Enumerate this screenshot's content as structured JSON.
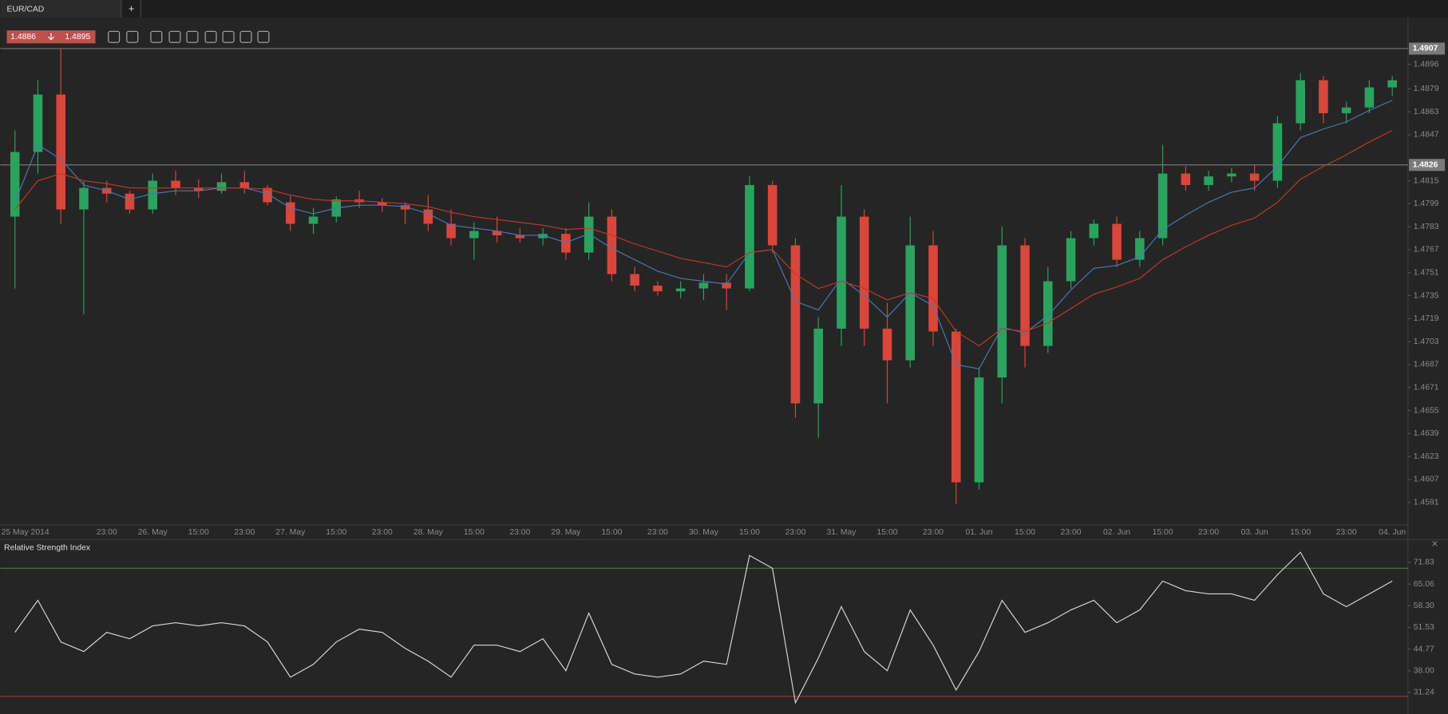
{
  "tab": {
    "title": "EUR/CAD",
    "add": "+"
  },
  "quote": {
    "bid": 1.4886,
    "ask": 1.4895
  },
  "chart_data": [
    {
      "type": "candlestick",
      "categories": [
        "25 May 2014",
        null,
        null,
        null,
        "23:00",
        null,
        "26. May",
        null,
        "15:00",
        null,
        "23:00",
        null,
        "27. May",
        null,
        "15:00",
        null,
        "23:00",
        null,
        "28. May",
        null,
        "15:00",
        null,
        "23:00",
        null,
        "29. May",
        null,
        "15:00",
        null,
        "23:00",
        null,
        "30. May",
        null,
        "15:00",
        null,
        "23:00",
        null,
        "31. May",
        null,
        "15:00",
        null,
        "23:00",
        null,
        "01. Jun",
        null,
        "15:00",
        null,
        "23:00",
        null,
        "02. Jun",
        null,
        "15:00",
        null,
        "23:00",
        null,
        "03. Jun",
        null,
        "15:00",
        null,
        "23:00",
        null,
        "04. Jun"
      ],
      "open": [
        1.479,
        1.4835,
        1.4875,
        1.4795,
        1.481,
        1.4806,
        1.4795,
        1.4815,
        1.481,
        1.4808,
        1.4814,
        1.481,
        1.48,
        1.4785,
        1.479,
        1.4802,
        1.48,
        1.4798,
        1.4795,
        1.4785,
        1.4775,
        1.478,
        1.4777,
        1.4775,
        1.4778,
        1.4765,
        1.479,
        1.475,
        1.4742,
        1.4738,
        1.474,
        1.4744,
        1.474,
        1.4812,
        1.477,
        1.466,
        1.4712,
        1.479,
        1.4712,
        1.469,
        1.477,
        1.471,
        1.4605,
        1.4678,
        1.477,
        1.47,
        1.4745,
        1.4775,
        1.4785,
        1.476,
        1.4775,
        1.482,
        1.4812,
        1.4818,
        1.482,
        1.4815,
        1.4855,
        1.4885,
        1.4862,
        1.4866,
        1.488
      ],
      "high": [
        1.485,
        1.4885,
        1.4907,
        1.4815,
        1.4815,
        1.4808,
        1.482,
        1.4822,
        1.4816,
        1.482,
        1.4822,
        1.4812,
        1.4805,
        1.4796,
        1.4804,
        1.4808,
        1.4803,
        1.48,
        1.4805,
        1.4795,
        1.4786,
        1.479,
        1.4782,
        1.4782,
        1.4782,
        1.48,
        1.4795,
        1.4755,
        1.4745,
        1.4745,
        1.475,
        1.475,
        1.4818,
        1.4815,
        1.4775,
        1.472,
        1.4812,
        1.4795,
        1.473,
        1.479,
        1.478,
        1.4712,
        1.4685,
        1.4783,
        1.4775,
        1.4755,
        1.478,
        1.4788,
        1.479,
        1.478,
        1.484,
        1.4825,
        1.4822,
        1.4824,
        1.4826,
        1.486,
        1.489,
        1.4888,
        1.487,
        1.4885,
        1.4888
      ],
      "low": [
        1.474,
        1.482,
        1.4785,
        1.4722,
        1.48,
        1.4792,
        1.4792,
        1.4805,
        1.4803,
        1.4806,
        1.4806,
        1.4798,
        1.478,
        1.4778,
        1.4786,
        1.4796,
        1.4793,
        1.4785,
        1.478,
        1.477,
        1.476,
        1.4772,
        1.4772,
        1.477,
        1.476,
        1.476,
        1.4745,
        1.4738,
        1.4735,
        1.4733,
        1.4732,
        1.4725,
        1.4738,
        1.4765,
        1.465,
        1.4636,
        1.47,
        1.47,
        1.466,
        1.4685,
        1.47,
        1.459,
        1.46,
        1.466,
        1.4685,
        1.4695,
        1.474,
        1.477,
        1.4755,
        1.4755,
        1.477,
        1.4808,
        1.4808,
        1.4814,
        1.4808,
        1.481,
        1.485,
        1.4855,
        1.4855,
        1.4862,
        1.4874
      ],
      "close": [
        1.4835,
        1.4875,
        1.4795,
        1.481,
        1.4806,
        1.4795,
        1.4815,
        1.481,
        1.4808,
        1.4814,
        1.481,
        1.48,
        1.4785,
        1.479,
        1.4802,
        1.48,
        1.4798,
        1.4795,
        1.4785,
        1.4775,
        1.478,
        1.4777,
        1.4775,
        1.4778,
        1.4765,
        1.479,
        1.475,
        1.4742,
        1.4738,
        1.474,
        1.4744,
        1.474,
        1.4812,
        1.477,
        1.466,
        1.4712,
        1.479,
        1.4712,
        1.469,
        1.477,
        1.471,
        1.4605,
        1.4678,
        1.477,
        1.47,
        1.4745,
        1.4775,
        1.4785,
        1.476,
        1.4775,
        1.482,
        1.4812,
        1.4818,
        1.482,
        1.4815,
        1.4855,
        1.4885,
        1.4862,
        1.4866,
        1.488,
        1.4885
      ],
      "up_color": "#2ca25f",
      "down_color": "#d9463b",
      "series": [
        {
          "color": "#4a78b5",
          "values": [
            1.48,
            1.484,
            1.483,
            1.4812,
            1.4808,
            1.4802,
            1.4806,
            1.4808,
            1.4808,
            1.481,
            1.481,
            1.4806,
            1.4796,
            1.4792,
            1.4796,
            1.4798,
            1.4798,
            1.4797,
            1.4792,
            1.4784,
            1.4782,
            1.478,
            1.4777,
            1.4777,
            1.4772,
            1.4778,
            1.4768,
            1.476,
            1.4752,
            1.4747,
            1.4745,
            1.4743,
            1.4765,
            1.4767,
            1.4731,
            1.4725,
            1.4747,
            1.4735,
            1.472,
            1.4737,
            1.4728,
            1.4687,
            1.4684,
            1.4713,
            1.4709,
            1.4721,
            1.4739,
            1.4754,
            1.4756,
            1.4762,
            1.4781,
            1.4791,
            1.48,
            1.4807,
            1.481,
            1.4825,
            1.4845,
            1.4851,
            1.4856,
            1.4864,
            1.4871
          ]
        },
        {
          "color": "#c0392b",
          "values": [
            1.4795,
            1.4815,
            1.482,
            1.4815,
            1.4813,
            1.481,
            1.481,
            1.481,
            1.481,
            1.481,
            1.481,
            1.4809,
            1.4805,
            1.4802,
            1.4801,
            1.4801,
            1.48,
            1.4799,
            1.4797,
            1.4793,
            1.479,
            1.4788,
            1.4786,
            1.4784,
            1.4781,
            1.4782,
            1.4777,
            1.4771,
            1.4766,
            1.4761,
            1.4758,
            1.4755,
            1.4765,
            1.4767,
            1.475,
            1.474,
            1.4745,
            1.474,
            1.4732,
            1.4737,
            1.4733,
            1.471,
            1.47,
            1.4712,
            1.471,
            1.4716,
            1.4726,
            1.4736,
            1.4741,
            1.4747,
            1.476,
            1.4769,
            1.4777,
            1.4784,
            1.4789,
            1.48,
            1.4816,
            1.4825,
            1.4833,
            1.4842,
            1.485
          ]
        }
      ],
      "ylim": [
        1.4576,
        1.4928
      ],
      "yticks": [
        1.4896,
        1.4879,
        1.4863,
        1.4847,
        1.4815,
        1.4799,
        1.4783,
        1.4767,
        1.4751,
        1.4735,
        1.4719,
        1.4703,
        1.4687,
        1.4671,
        1.4655,
        1.4639,
        1.4623,
        1.4607,
        1.4591
      ],
      "price_lines": [
        1.4907,
        1.4826
      ]
    },
    {
      "type": "line",
      "title": "Relative Strength Index",
      "close": "×",
      "color": "#d8d8d8",
      "values": [
        50,
        60,
        47,
        44,
        50,
        48,
        52,
        53,
        52,
        53,
        52,
        47,
        36,
        40,
        47,
        51,
        50,
        45,
        41,
        36,
        46,
        46,
        44,
        48,
        38,
        56,
        40,
        37,
        36,
        37,
        41,
        40,
        74,
        70,
        28,
        42,
        58,
        44,
        38,
        57,
        46,
        32,
        44,
        60,
        50,
        53,
        57,
        60,
        53,
        57,
        66,
        63,
        62,
        62,
        60,
        68,
        75,
        62,
        58,
        62,
        66
      ],
      "ylim": [
        24.5,
        77.5
      ],
      "yticks": [
        71.83,
        65.06,
        {
          "value": 58.3,
          "label": "58.30"
        },
        51.53,
        44.77,
        {
          "value": 38,
          "label": "38.00"
        },
        31.24
      ],
      "levels": [
        {
          "value": 70,
          "color": "#4f7a3a"
        },
        {
          "value": 30,
          "color": "#a0392f"
        }
      ]
    }
  ]
}
